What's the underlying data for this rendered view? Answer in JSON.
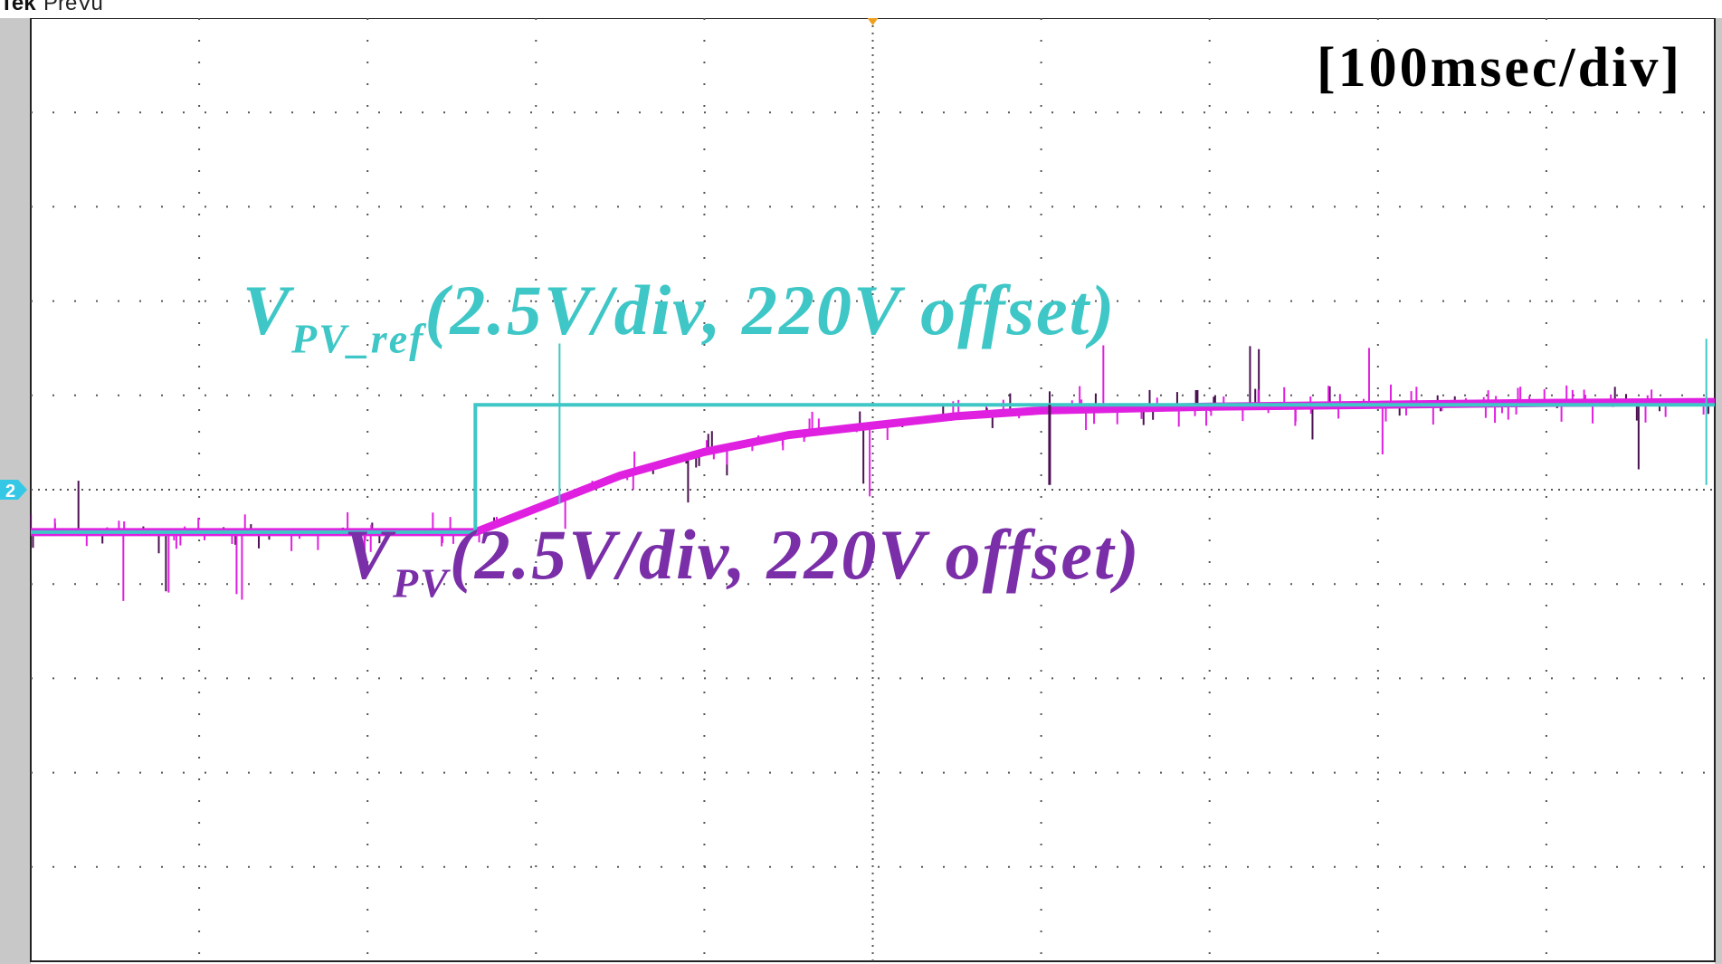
{
  "header": {
    "brand": "Tek",
    "mode": "PreVu"
  },
  "annotations": {
    "timescale": "[100msec/div]",
    "ref_label_main": "V",
    "ref_label_sub": "PV_ref",
    "ref_label_rest": "(2.5V/div, 220V offset)",
    "pv_label_main": "V",
    "pv_label_sub": "PV",
    "pv_label_rest": "(2.5V/div, 220V offset)"
  },
  "colors": {
    "ref_trace": "#3ec7c6",
    "pv_trace": "#e020e0",
    "pv_dark": "#4a1050",
    "grid": "#555555",
    "trigger_marker": "#f0a020",
    "channel2_marker": "#35c8e6"
  },
  "chart_data": {
    "type": "line",
    "x_unit": "divisions (100 msec/div)",
    "xlim": [
      0,
      10
    ],
    "ylim": [
      -5,
      5
    ],
    "grid": true,
    "channel_marker": "2",
    "series": [
      {
        "name": "V_PV_ref",
        "x": [
          0,
          2.64,
          2.64,
          10
        ],
        "y": [
          -0.45,
          -0.45,
          0.9,
          0.9
        ]
      },
      {
        "name": "V_PV",
        "x": [
          0,
          2.64,
          3.0,
          3.5,
          4.0,
          4.5,
          5.0,
          5.5,
          6.0,
          7.0,
          8.0,
          9.0,
          10.0
        ],
        "y": [
          -0.45,
          -0.45,
          -0.2,
          0.15,
          0.4,
          0.58,
          0.68,
          0.78,
          0.84,
          0.88,
          0.9,
          0.92,
          0.93
        ]
      }
    ]
  }
}
